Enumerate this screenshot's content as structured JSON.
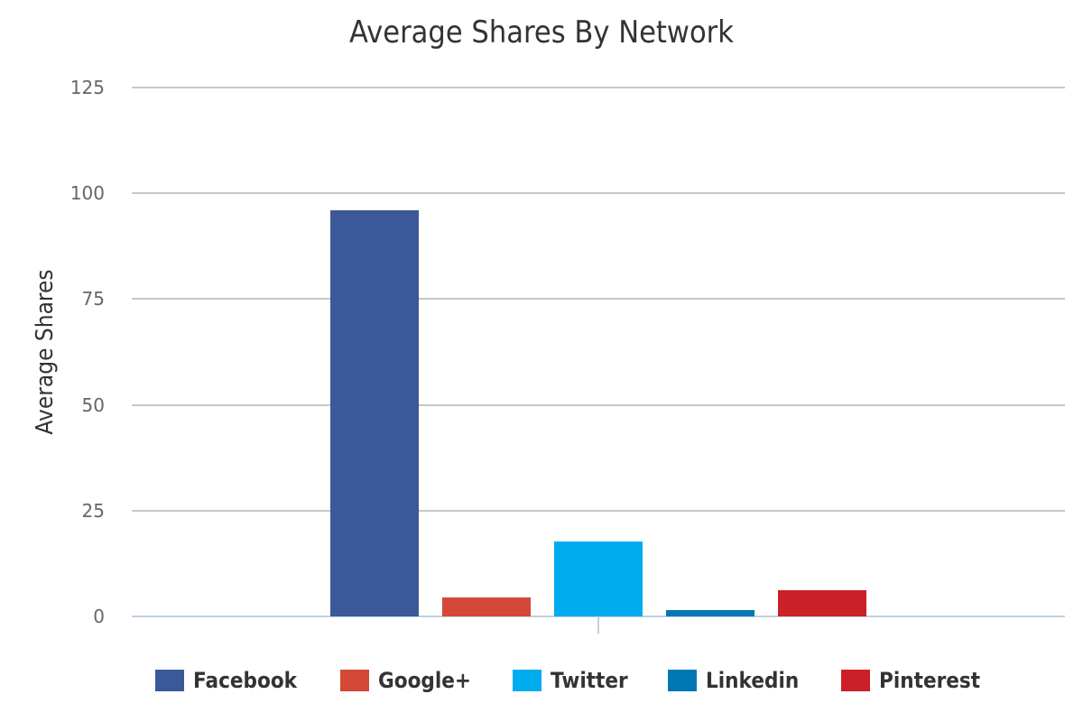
{
  "chart_data": {
    "type": "bar",
    "title": "Average Shares By Network",
    "xlabel": "",
    "ylabel": "Average Shares",
    "ylim": [
      0,
      125
    ],
    "yticks": [
      0,
      25,
      50,
      75,
      100,
      125
    ],
    "grid": true,
    "legend_position": "bottom",
    "categories": [
      ""
    ],
    "series": [
      {
        "name": "Facebook",
        "values": [
          96
        ],
        "color": "#3b5998"
      },
      {
        "name": "Google+",
        "values": [
          4.5
        ],
        "color": "#d34836"
      },
      {
        "name": "Twitter",
        "values": [
          17.7
        ],
        "color": "#00acee"
      },
      {
        "name": "Linkedin",
        "values": [
          1.5
        ],
        "color": "#0077b5"
      },
      {
        "name": "Pinterest",
        "values": [
          6.2
        ],
        "color": "#cb2027"
      }
    ]
  },
  "ticks": [
    "0",
    "25",
    "50",
    "75",
    "100",
    "125"
  ]
}
